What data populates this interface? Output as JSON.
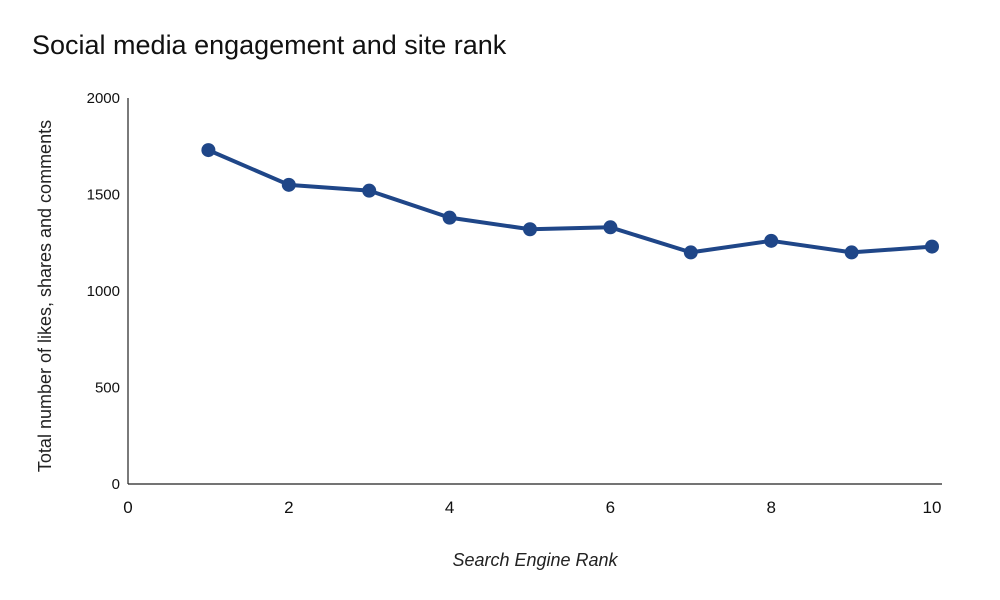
{
  "chart_data": {
    "type": "line",
    "title": "Social media engagement and site rank",
    "xlabel": "Search Engine Rank",
    "ylabel": "Total number of likes, shares and comments",
    "xlim": [
      0,
      10
    ],
    "ylim": [
      0,
      2000
    ],
    "x_ticks": [
      0,
      2,
      4,
      6,
      8,
      10
    ],
    "y_ticks": [
      0,
      500,
      1000,
      1500,
      2000
    ],
    "grid": false,
    "series": [
      {
        "x": [
          1,
          2,
          3,
          4,
          5,
          6,
          7,
          8,
          9,
          10
        ],
        "values": [
          1730,
          1550,
          1520,
          1380,
          1320,
          1330,
          1200,
          1260,
          1200,
          1230
        ],
        "color": "#1f4688"
      }
    ]
  }
}
